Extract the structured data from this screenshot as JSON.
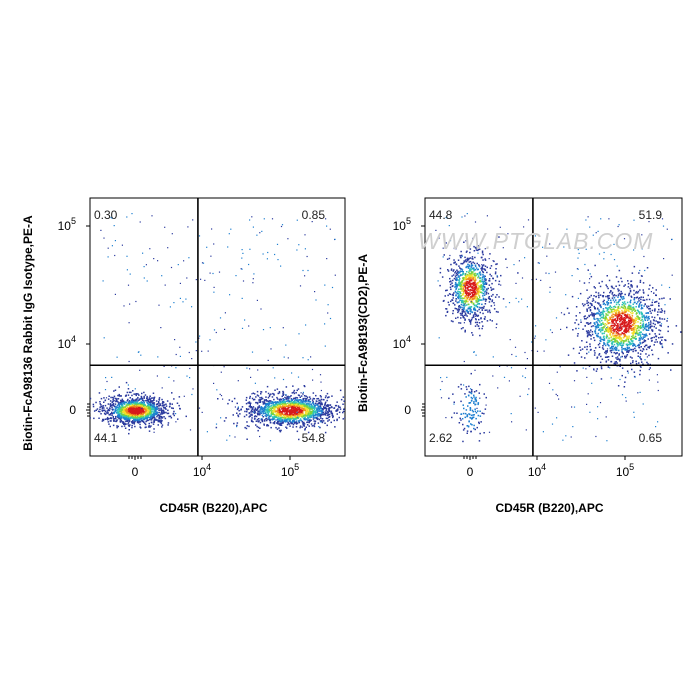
{
  "watermark": "WWW.PTGLAB.COM",
  "chart_data": [
    {
      "type": "scatter",
      "subtype": "flow-cytometry-density-dot-plot",
      "xlabel": "CD45R (B220),APC",
      "ylabel": "Biotin-FcA98136 Rabbit IgG Isotype,PE-A",
      "x_scale": "biexponential",
      "y_scale": "biexponential",
      "xticks": [
        {
          "value": 0,
          "label": "0"
        },
        {
          "value": 10000,
          "label": "10",
          "exp": "4"
        },
        {
          "value": 100000,
          "label": "10",
          "exp": "5"
        }
      ],
      "yticks": [
        {
          "value": 0,
          "label": "0"
        },
        {
          "value": 10000,
          "label": "10",
          "exp": "4"
        },
        {
          "value": 100000,
          "label": "10",
          "exp": "5"
        }
      ],
      "gate": {
        "x": 8000,
        "y": 3000
      },
      "quadrants": {
        "upper_left": "0.30",
        "upper_right": "0.85",
        "lower_left": "44.1",
        "lower_right": "54.8"
      },
      "populations": [
        {
          "name": "",
          "center_x": 0,
          "center_y": 0,
          "density": "high"
        },
        {
          "name": "",
          "center_x": 100000,
          "center_y": 0,
          "density": "high"
        }
      ]
    },
    {
      "type": "scatter",
      "subtype": "flow-cytometry-density-dot-plot",
      "xlabel": "CD45R (B220),APC",
      "ylabel": "Biotin-FcA98193(CD2),PE-A",
      "x_scale": "biexponential",
      "y_scale": "biexponential",
      "xticks": [
        {
          "value": 0,
          "label": "0"
        },
        {
          "value": 10000,
          "label": "10",
          "exp": "4"
        },
        {
          "value": 100000,
          "label": "10",
          "exp": "5"
        }
      ],
      "yticks": [
        {
          "value": 0,
          "label": "0"
        },
        {
          "value": 10000,
          "label": "10",
          "exp": "4"
        },
        {
          "value": 100000,
          "label": "10",
          "exp": "5"
        }
      ],
      "gate": {
        "x": 8000,
        "y": 3000
      },
      "quadrants": {
        "upper_left": "44.8",
        "upper_right": "51.9",
        "lower_left": "2.62",
        "lower_right": "0.65"
      },
      "populations": [
        {
          "name": "",
          "center_x": 0,
          "center_y": 30000,
          "density": "high"
        },
        {
          "name": "",
          "center_x": 90000,
          "center_y": 15000,
          "density": "high"
        },
        {
          "name": "",
          "center_x": 0,
          "center_y": 0,
          "density": "low"
        }
      ]
    }
  ],
  "colors": {
    "density_scale": [
      "#2b3a9e",
      "#1d7fd0",
      "#2ec4b6",
      "#7cd23c",
      "#f2e02a",
      "#f08a1c",
      "#d7191c"
    ],
    "gate_lines": "#000000",
    "frame": "#000000",
    "watermark": "#cfcfcf"
  }
}
